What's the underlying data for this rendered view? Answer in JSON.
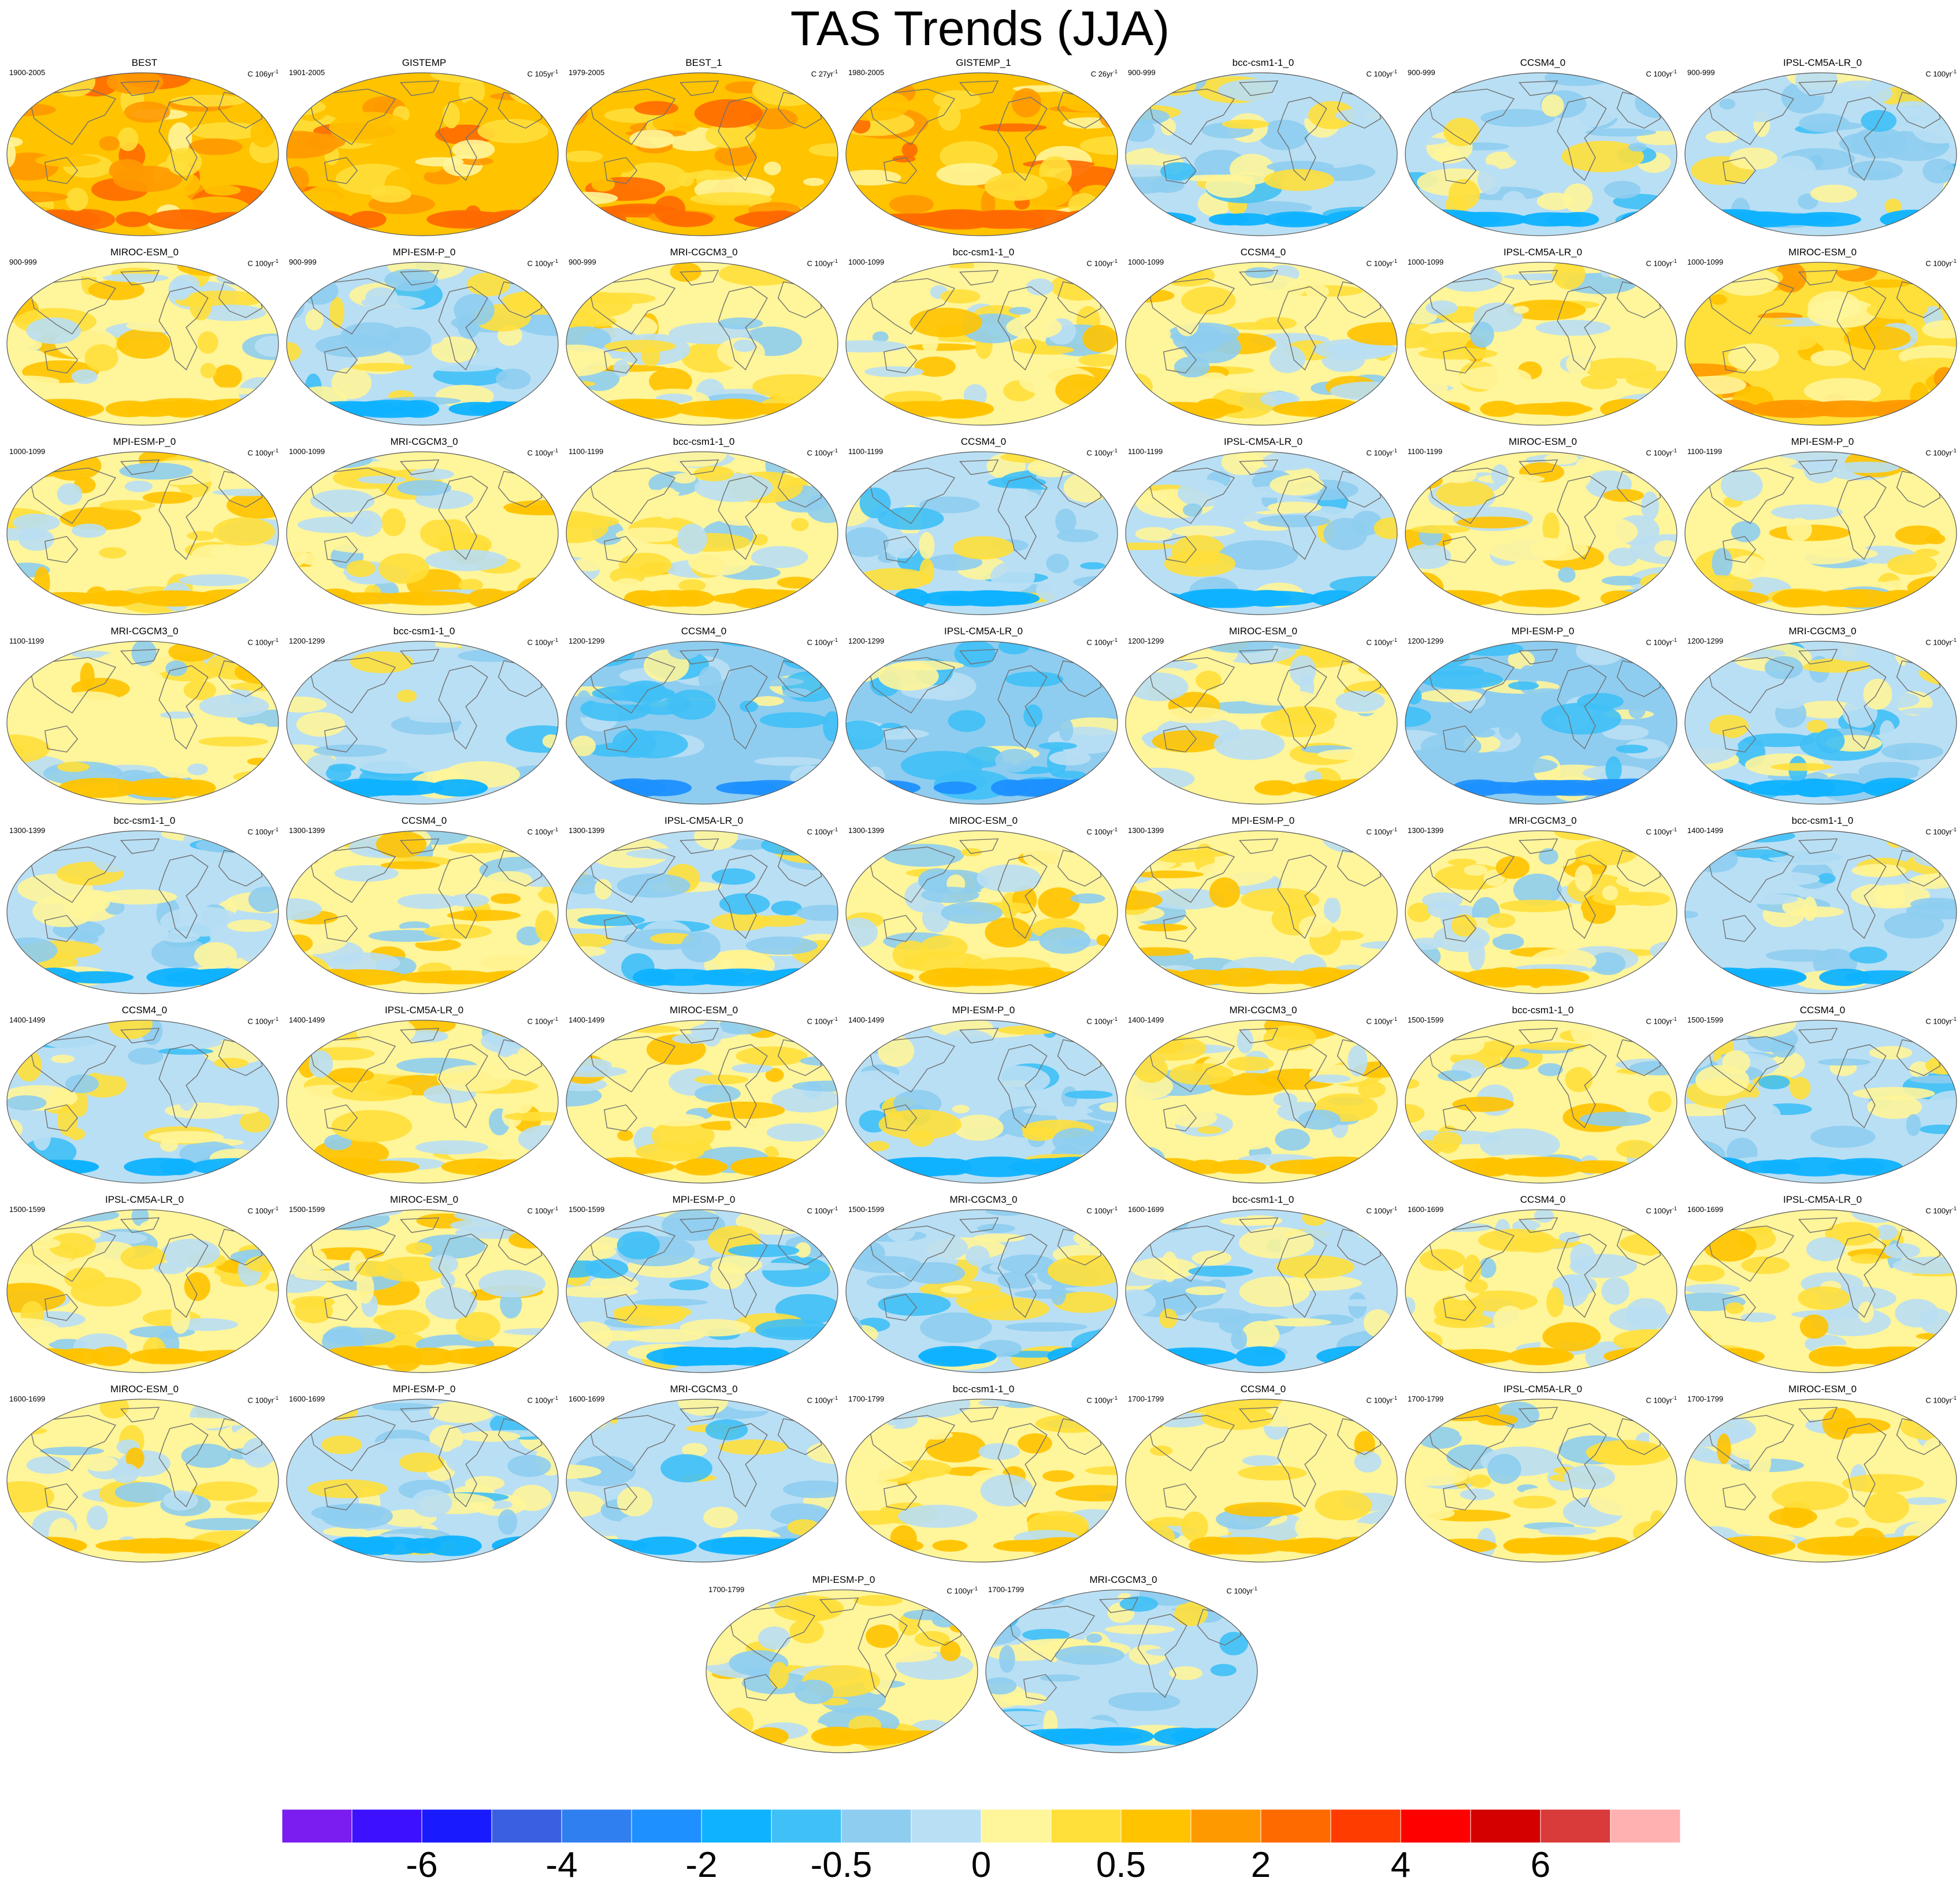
{
  "title": "TAS Trends (JJA)",
  "chart_data": {
    "type": "heatmap",
    "title": "TAS Trends (JJA)",
    "panels": [
      {
        "name": "BEST",
        "period": "1900-2005",
        "units": "C 106yr",
        "units_sup": "-1",
        "mean_level": 12
      },
      {
        "name": "GISTEMP",
        "period": "1901-2005",
        "units": "C 105yr",
        "units_sup": "-1",
        "mean_level": 12
      },
      {
        "name": "BEST_1",
        "period": "1979-2005",
        "units": "C 27yr",
        "units_sup": "-1",
        "mean_level": 12
      },
      {
        "name": "GISTEMP_1",
        "period": "1980-2005",
        "units": "C 26yr",
        "units_sup": "-1",
        "mean_level": 12
      },
      {
        "name": "bcc-csm1-1_0",
        "period": "900-999",
        "units": "C 100yr",
        "units_sup": "-1",
        "mean_level": 9
      },
      {
        "name": "CCSM4_0",
        "period": "900-999",
        "units": "C 100yr",
        "units_sup": "-1",
        "mean_level": 9
      },
      {
        "name": "IPSL-CM5A-LR_0",
        "period": "900-999",
        "units": "C 100yr",
        "units_sup": "-1",
        "mean_level": 9
      },
      {
        "name": "MIROC-ESM_0",
        "period": "900-999",
        "units": "C 100yr",
        "units_sup": "-1",
        "mean_level": 10
      },
      {
        "name": "MPI-ESM-P_0",
        "period": "900-999",
        "units": "C 100yr",
        "units_sup": "-1",
        "mean_level": 9
      },
      {
        "name": "MRI-CGCM3_0",
        "period": "900-999",
        "units": "C 100yr",
        "units_sup": "-1",
        "mean_level": 10
      },
      {
        "name": "bcc-csm1-1_0",
        "period": "1000-1099",
        "units": "C 100yr",
        "units_sup": "-1",
        "mean_level": 10
      },
      {
        "name": "CCSM4_0",
        "period": "1000-1099",
        "units": "C 100yr",
        "units_sup": "-1",
        "mean_level": 10
      },
      {
        "name": "IPSL-CM5A-LR_0",
        "period": "1000-1099",
        "units": "C 100yr",
        "units_sup": "-1",
        "mean_level": 10
      },
      {
        "name": "MIROC-ESM_0",
        "period": "1000-1099",
        "units": "C 100yr",
        "units_sup": "-1",
        "mean_level": 11
      },
      {
        "name": "MPI-ESM-P_0",
        "period": "1000-1099",
        "units": "C 100yr",
        "units_sup": "-1",
        "mean_level": 10
      },
      {
        "name": "MRI-CGCM3_0",
        "period": "1000-1099",
        "units": "C 100yr",
        "units_sup": "-1",
        "mean_level": 10
      },
      {
        "name": "bcc-csm1-1_0",
        "period": "1100-1199",
        "units": "C 100yr",
        "units_sup": "-1",
        "mean_level": 10
      },
      {
        "name": "CCSM4_0",
        "period": "1100-1199",
        "units": "C 100yr",
        "units_sup": "-1",
        "mean_level": 9
      },
      {
        "name": "IPSL-CM5A-LR_0",
        "period": "1100-1199",
        "units": "C 100yr",
        "units_sup": "-1",
        "mean_level": 9
      },
      {
        "name": "MIROC-ESM_0",
        "period": "1100-1199",
        "units": "C 100yr",
        "units_sup": "-1",
        "mean_level": 10
      },
      {
        "name": "MPI-ESM-P_0",
        "period": "1100-1199",
        "units": "C 100yr",
        "units_sup": "-1",
        "mean_level": 10
      },
      {
        "name": "MRI-CGCM3_0",
        "period": "1100-1199",
        "units": "C 100yr",
        "units_sup": "-1",
        "mean_level": 10
      },
      {
        "name": "bcc-csm1-1_0",
        "period": "1200-1299",
        "units": "C 100yr",
        "units_sup": "-1",
        "mean_level": 9
      },
      {
        "name": "CCSM4_0",
        "period": "1200-1299",
        "units": "C 100yr",
        "units_sup": "-1",
        "mean_level": 8
      },
      {
        "name": "IPSL-CM5A-LR_0",
        "period": "1200-1299",
        "units": "C 100yr",
        "units_sup": "-1",
        "mean_level": 8
      },
      {
        "name": "MIROC-ESM_0",
        "period": "1200-1299",
        "units": "C 100yr",
        "units_sup": "-1",
        "mean_level": 10
      },
      {
        "name": "MPI-ESM-P_0",
        "period": "1200-1299",
        "units": "C 100yr",
        "units_sup": "-1",
        "mean_level": 8
      },
      {
        "name": "MRI-CGCM3_0",
        "period": "1200-1299",
        "units": "C 100yr",
        "units_sup": "-1",
        "mean_level": 9
      },
      {
        "name": "bcc-csm1-1_0",
        "period": "1300-1399",
        "units": "C 100yr",
        "units_sup": "-1",
        "mean_level": 9
      },
      {
        "name": "CCSM4_0",
        "period": "1300-1399",
        "units": "C 100yr",
        "units_sup": "-1",
        "mean_level": 10
      },
      {
        "name": "IPSL-CM5A-LR_0",
        "period": "1300-1399",
        "units": "C 100yr",
        "units_sup": "-1",
        "mean_level": 9
      },
      {
        "name": "MIROC-ESM_0",
        "period": "1300-1399",
        "units": "C 100yr",
        "units_sup": "-1",
        "mean_level": 10
      },
      {
        "name": "MPI-ESM-P_0",
        "period": "1300-1399",
        "units": "C 100yr",
        "units_sup": "-1",
        "mean_level": 10
      },
      {
        "name": "MRI-CGCM3_0",
        "period": "1300-1399",
        "units": "C 100yr",
        "units_sup": "-1",
        "mean_level": 10
      },
      {
        "name": "bcc-csm1-1_0",
        "period": "1400-1499",
        "units": "C 100yr",
        "units_sup": "-1",
        "mean_level": 9
      },
      {
        "name": "CCSM4_0",
        "period": "1400-1499",
        "units": "C 100yr",
        "units_sup": "-1",
        "mean_level": 9
      },
      {
        "name": "IPSL-CM5A-LR_0",
        "period": "1400-1499",
        "units": "C 100yr",
        "units_sup": "-1",
        "mean_level": 10
      },
      {
        "name": "MIROC-ESM_0",
        "period": "1400-1499",
        "units": "C 100yr",
        "units_sup": "-1",
        "mean_level": 10
      },
      {
        "name": "MPI-ESM-P_0",
        "period": "1400-1499",
        "units": "C 100yr",
        "units_sup": "-1",
        "mean_level": 9
      },
      {
        "name": "MRI-CGCM3_0",
        "period": "1400-1499",
        "units": "C 100yr",
        "units_sup": "-1",
        "mean_level": 10
      },
      {
        "name": "bcc-csm1-1_0",
        "period": "1500-1599",
        "units": "C 100yr",
        "units_sup": "-1",
        "mean_level": 10
      },
      {
        "name": "CCSM4_0",
        "period": "1500-1599",
        "units": "C 100yr",
        "units_sup": "-1",
        "mean_level": 9
      },
      {
        "name": "IPSL-CM5A-LR_0",
        "period": "1500-1599",
        "units": "C 100yr",
        "units_sup": "-1",
        "mean_level": 10
      },
      {
        "name": "MIROC-ESM_0",
        "period": "1500-1599",
        "units": "C 100yr",
        "units_sup": "-1",
        "mean_level": 10
      },
      {
        "name": "MPI-ESM-P_0",
        "period": "1500-1599",
        "units": "C 100yr",
        "units_sup": "-1",
        "mean_level": 9
      },
      {
        "name": "MRI-CGCM3_0",
        "period": "1500-1599",
        "units": "C 100yr",
        "units_sup": "-1",
        "mean_level": 9
      },
      {
        "name": "bcc-csm1-1_0",
        "period": "1600-1699",
        "units": "C 100yr",
        "units_sup": "-1",
        "mean_level": 9
      },
      {
        "name": "CCSM4_0",
        "period": "1600-1699",
        "units": "C 100yr",
        "units_sup": "-1",
        "mean_level": 10
      },
      {
        "name": "IPSL-CM5A-LR_0",
        "period": "1600-1699",
        "units": "C 100yr",
        "units_sup": "-1",
        "mean_level": 10
      },
      {
        "name": "MIROC-ESM_0",
        "period": "1600-1699",
        "units": "C 100yr",
        "units_sup": "-1",
        "mean_level": 10
      },
      {
        "name": "MPI-ESM-P_0",
        "period": "1600-1699",
        "units": "C 100yr",
        "units_sup": "-1",
        "mean_level": 9
      },
      {
        "name": "MRI-CGCM3_0",
        "period": "1600-1699",
        "units": "C 100yr",
        "units_sup": "-1",
        "mean_level": 9
      },
      {
        "name": "bcc-csm1-1_0",
        "period": "1700-1799",
        "units": "C 100yr",
        "units_sup": "-1",
        "mean_level": 10
      },
      {
        "name": "CCSM4_0",
        "period": "1700-1799",
        "units": "C 100yr",
        "units_sup": "-1",
        "mean_level": 10
      },
      {
        "name": "IPSL-CM5A-LR_0",
        "period": "1700-1799",
        "units": "C 100yr",
        "units_sup": "-1",
        "mean_level": 10
      },
      {
        "name": "MIROC-ESM_0",
        "period": "1700-1799",
        "units": "C 100yr",
        "units_sup": "-1",
        "mean_level": 10
      },
      {
        "name": "MPI-ESM-P_0",
        "period": "1700-1799",
        "units": "C 100yr",
        "units_sup": "-1",
        "mean_level": 10
      },
      {
        "name": "MRI-CGCM3_0",
        "period": "1700-1799",
        "units": "C 100yr",
        "units_sup": "-1",
        "mean_level": 9
      }
    ],
    "colorbar": {
      "colors": [
        "#7b1cf0",
        "#3d10ff",
        "#1a1aff",
        "#3a5fe0",
        "#2f7ff0",
        "#1e90ff",
        "#0fb2ff",
        "#3fc0f6",
        "#8ecdf0",
        "#b9dff4",
        "#fff59a",
        "#ffdf3a",
        "#ffc300",
        "#ff9900",
        "#ff6a00",
        "#ff3c00",
        "#ff0000",
        "#d40000",
        "#d93a3a",
        "#ffb0b0"
      ],
      "tick_labels": [
        "-6",
        "-4",
        "-2",
        "-0.5",
        "0",
        "0.5",
        "2",
        "4",
        "6"
      ],
      "tick_boundaries": [
        2,
        4,
        6,
        8,
        10,
        12,
        14,
        16,
        18
      ]
    }
  }
}
